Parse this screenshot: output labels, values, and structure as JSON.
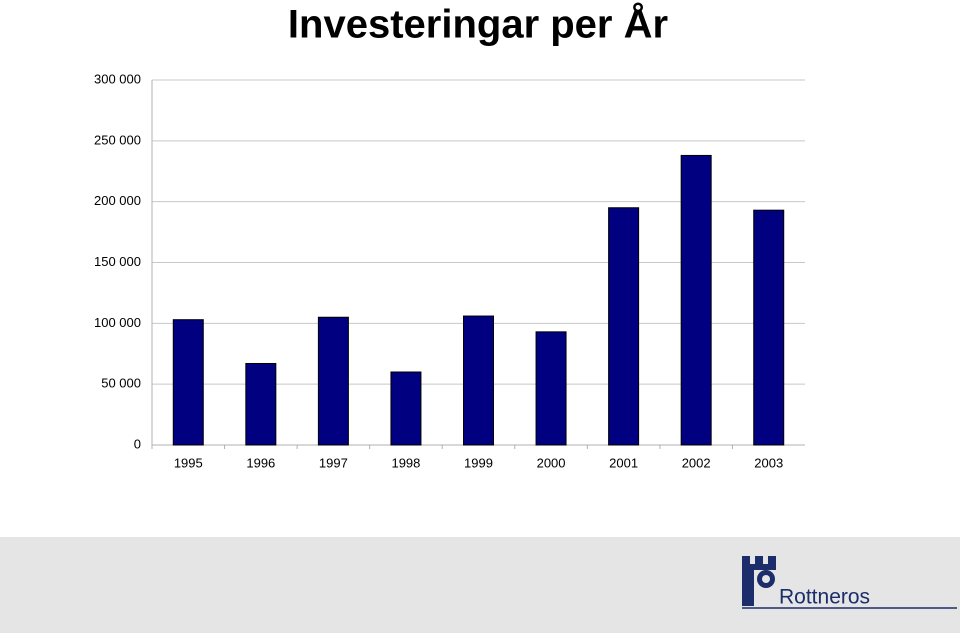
{
  "chart_data": {
    "type": "bar",
    "title": "Investeringar per År",
    "categories": [
      "1995",
      "1996",
      "1997",
      "1998",
      "1999",
      "2000",
      "2001",
      "2002",
      "2003"
    ],
    "values": [
      103000,
      67000,
      105000,
      60000,
      106000,
      93000,
      195000,
      238000,
      193000
    ],
    "color": "#000080",
    "ylim": [
      0,
      300000
    ],
    "yticks": [
      0,
      {
        "value": 50000,
        "label": "50 000"
      },
      {
        "value": 100000,
        "label": "100 000"
      },
      {
        "value": 150000,
        "label": "150 000"
      },
      {
        "value": 200000,
        "label": "200 000"
      },
      {
        "value": 250000,
        "label": "250 000"
      },
      {
        "value": 300000,
        "label": "300 000"
      }
    ],
    "grid": true
  },
  "footer": {
    "logo_text": "Rottneros"
  }
}
